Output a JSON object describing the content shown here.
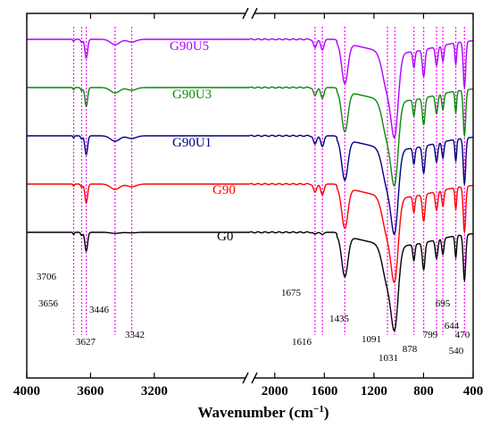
{
  "chart_data": {
    "type": "line",
    "title": "",
    "xlabel": "Wavenumber (cm",
    "xlabel_sup": "−1",
    "xlabel_close": ")",
    "ylabel": "",
    "x_reversed": true,
    "axis_break": [
      2600,
      2200
    ],
    "x_ticks": [
      {
        "value": 4000,
        "label": "4000"
      },
      {
        "value": 3600,
        "label": "3600"
      },
      {
        "value": 3200,
        "label": "3200"
      },
      {
        "value": 2000,
        "label": "2000"
      },
      {
        "value": 1600,
        "label": "1600"
      },
      {
        "value": 1200,
        "label": "1200"
      },
      {
        "value": 800,
        "label": "800"
      },
      {
        "value": 400,
        "label": "400"
      }
    ],
    "series": [
      {
        "name": "G90U5",
        "color": "#b000ff",
        "offset": 0.0
      },
      {
        "name": "G90U3",
        "color": "#0a8a0a",
        "offset": 1.0
      },
      {
        "name": "G90U1",
        "color": "#000080",
        "offset": 2.0
      },
      {
        "name": "G90",
        "color": "#ff0000",
        "offset": 3.0
      },
      {
        "name": "G0",
        "color": "#000000",
        "offset": 4.0
      }
    ],
    "reference_lines": [
      3706,
      3656,
      3627,
      3446,
      3342,
      1675,
      1616,
      1435,
      1091,
      1031,
      878,
      799,
      695,
      644,
      540,
      470
    ],
    "reference_line_color": "#ff00ff",
    "peak_labels": [
      {
        "x": 3706,
        "label": "3706"
      },
      {
        "x": 3656,
        "label": "3656"
      },
      {
        "x": 3627,
        "label": "3627"
      },
      {
        "x": 3446,
        "label": "3446"
      },
      {
        "x": 3342,
        "label": "3342"
      },
      {
        "x": 1675,
        "label": "1675"
      },
      {
        "x": 1616,
        "label": "1616"
      },
      {
        "x": 1435,
        "label": "1435"
      },
      {
        "x": 1091,
        "label": "1091"
      },
      {
        "x": 1031,
        "label": "1031"
      },
      {
        "x": 878,
        "label": "878"
      },
      {
        "x": 799,
        "label": "799"
      },
      {
        "x": 695,
        "label": "695"
      },
      {
        "x": 644,
        "label": "644"
      },
      {
        "x": 540,
        "label": "540"
      },
      {
        "x": 470,
        "label": "470"
      }
    ]
  }
}
